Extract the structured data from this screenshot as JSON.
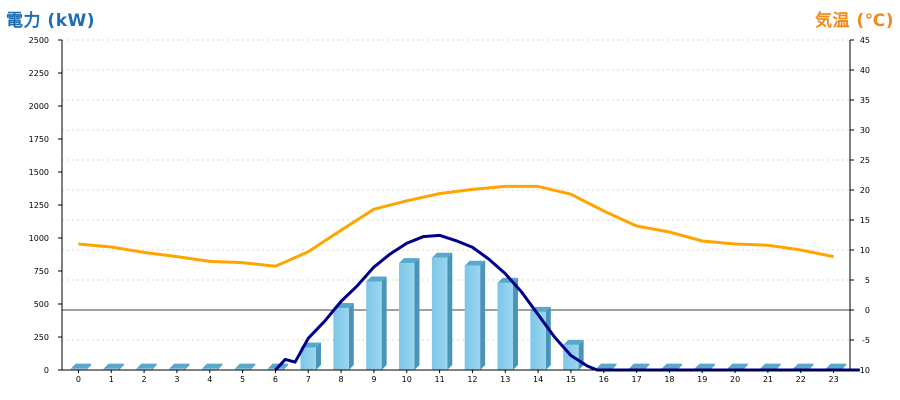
{
  "chart_data": {
    "type": "bar+line",
    "left_axis_title": "電力 (kW)",
    "right_axis_title": "気温 (℃)",
    "categories": [
      "0",
      "1",
      "2",
      "3",
      "4",
      "5",
      "6",
      "7",
      "8",
      "9",
      "10",
      "11",
      "12",
      "13",
      "14",
      "15",
      "16",
      "17",
      "18",
      "19",
      "20",
      "21",
      "22",
      "23"
    ],
    "left_ticks": [
      "0",
      "250",
      "500",
      "750",
      "1000",
      "1250",
      "1500",
      "1750",
      "2000",
      "2250",
      "2500"
    ],
    "right_ticks": [
      "-10",
      "-5",
      "0",
      "5",
      "10",
      "15",
      "20",
      "25",
      "30",
      "35",
      "40",
      "45"
    ],
    "ylim_left": [
      0,
      2500
    ],
    "ylim_right": [
      -10,
      45
    ],
    "grid": true,
    "bars": {
      "color": "#87CEEB",
      "values": [
        10,
        10,
        10,
        10,
        10,
        10,
        10,
        170,
        470,
        670,
        810,
        850,
        790,
        660,
        440,
        190,
        10,
        10,
        10,
        10,
        10,
        10,
        10,
        10
      ]
    },
    "power_curve": {
      "color": "#00008B",
      "x": [
        6.0,
        6.3,
        6.6,
        6.8,
        7.0,
        7.5,
        8.0,
        8.5,
        9.0,
        9.5,
        10.0,
        10.5,
        11.0,
        11.5,
        12.0,
        12.5,
        13.0,
        13.5,
        14.0,
        14.5,
        15.0,
        15.5,
        15.8,
        16.0,
        23.8
      ],
      "values": [
        0,
        80,
        60,
        150,
        240,
        370,
        520,
        640,
        780,
        880,
        960,
        1010,
        1020,
        980,
        930,
        840,
        730,
        590,
        420,
        250,
        110,
        30,
        0,
        0,
        0
      ]
    },
    "temperature": {
      "color": "#FFA500",
      "values": [
        11.0,
        10.5,
        9.6,
        8.9,
        8.1,
        7.9,
        7.3,
        9.7,
        13.3,
        16.8,
        18.2,
        19.4,
        20.1,
        20.6,
        20.6,
        19.3,
        16.5,
        14.0,
        13.0,
        11.5,
        11.0,
        10.8,
        10.0,
        8.9
      ]
    }
  }
}
